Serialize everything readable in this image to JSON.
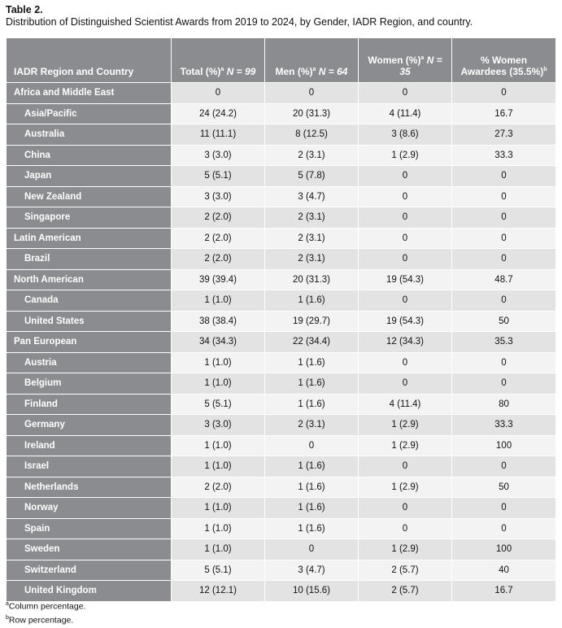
{
  "caption": {
    "title": "Table 2.",
    "subtitle": "Distribution of Distinguished Scientist Awards from 2019 to 2024, by Gender, IADR Region, and country."
  },
  "table": {
    "headers": {
      "region": "IADR Region and Country",
      "total_label": "Total (%)",
      "total_sup": "a",
      "total_n": "N = 99",
      "men_label": "Men (%)",
      "men_sup": "a",
      "men_n": "N = 64",
      "women_label": "Women (%)",
      "women_sup": "a",
      "women_n": "N = 35",
      "pct_line1": "% Women",
      "pct_line2": "Awardees (35.5%)",
      "pct_sup": "b"
    },
    "rows": [
      {
        "name": "Africa and Middle East",
        "sub": false,
        "total": "0",
        "men": "0",
        "women": "0",
        "pct": "0"
      },
      {
        "name": "Asia/Pacific",
        "sub": true,
        "total": "24 (24.2)",
        "men": "20 (31.3)",
        "women": "4 (11.4)",
        "pct": "16.7"
      },
      {
        "name": "Australia",
        "sub": true,
        "total": "11 (11.1)",
        "men": "8 (12.5)",
        "women": "3 (8.6)",
        "pct": "27.3"
      },
      {
        "name": "China",
        "sub": true,
        "total": "3 (3.0)",
        "men": "2 (3.1)",
        "women": "1 (2.9)",
        "pct": "33.3"
      },
      {
        "name": "Japan",
        "sub": true,
        "total": "5 (5.1)",
        "men": "5 (7.8)",
        "women": "0",
        "pct": "0"
      },
      {
        "name": "New Zealand",
        "sub": true,
        "total": "3 (3.0)",
        "men": "3 (4.7)",
        "women": "0",
        "pct": "0"
      },
      {
        "name": "Singapore",
        "sub": true,
        "total": "2 (2.0)",
        "men": "2 (3.1)",
        "women": "0",
        "pct": "0"
      },
      {
        "name": "Latin American",
        "sub": false,
        "total": "2 (2.0)",
        "men": "2 (3.1)",
        "women": "0",
        "pct": "0"
      },
      {
        "name": "Brazil",
        "sub": true,
        "total": "2 (2.0)",
        "men": "2 (3.1)",
        "women": "0",
        "pct": "0"
      },
      {
        "name": "North American",
        "sub": false,
        "total": "39 (39.4)",
        "men": "20 (31.3)",
        "women": "19 (54.3)",
        "pct": "48.7"
      },
      {
        "name": "Canada",
        "sub": true,
        "total": "1 (1.0)",
        "men": "1 (1.6)",
        "women": "0",
        "pct": "0"
      },
      {
        "name": "United States",
        "sub": true,
        "total": "38 (38.4)",
        "men": "19 (29.7)",
        "women": "19 (54.3)",
        "pct": "50"
      },
      {
        "name": "Pan European",
        "sub": false,
        "total": "34 (34.3)",
        "men": "22 (34.4)",
        "women": "12 (34.3)",
        "pct": "35.3"
      },
      {
        "name": "Austria",
        "sub": true,
        "total": "1 (1.0)",
        "men": "1 (1.6)",
        "women": "0",
        "pct": "0"
      },
      {
        "name": "Belgium",
        "sub": true,
        "total": "1 (1.0)",
        "men": "1 (1.6)",
        "women": "0",
        "pct": "0"
      },
      {
        "name": "Finland",
        "sub": true,
        "total": "5 (5.1)",
        "men": "1 (1.6)",
        "women": "4 (11.4)",
        "pct": "80"
      },
      {
        "name": "Germany",
        "sub": true,
        "total": "3 (3.0)",
        "men": "2 (3.1)",
        "women": "1 (2.9)",
        "pct": "33.3"
      },
      {
        "name": "Ireland",
        "sub": true,
        "total": "1 (1.0)",
        "men": "0",
        "women": "1 (2.9)",
        "pct": "100"
      },
      {
        "name": "Israel",
        "sub": true,
        "total": "1 (1.0)",
        "men": "1 (1.6)",
        "women": "0",
        "pct": "0"
      },
      {
        "name": "Netherlands",
        "sub": true,
        "total": "2 (2.0)",
        "men": "1 (1.6)",
        "women": "1 (2.9)",
        "pct": "50"
      },
      {
        "name": "Norway",
        "sub": true,
        "total": "1 (1.0)",
        "men": "1 (1.6)",
        "women": "0",
        "pct": "0"
      },
      {
        "name": "Spain",
        "sub": true,
        "total": "1 (1.0)",
        "men": "1 (1.6)",
        "women": "0",
        "pct": "0"
      },
      {
        "name": "Sweden",
        "sub": true,
        "total": "1 (1.0)",
        "men": "0",
        "women": "1 (2.9)",
        "pct": "100"
      },
      {
        "name": "Switzerland",
        "sub": true,
        "total": "5 (5.1)",
        "men": "3 (4.7)",
        "women": "2 (5.7)",
        "pct": "40"
      },
      {
        "name": "United Kingdom",
        "sub": true,
        "total": "12 (12.1)",
        "men": "10 (15.6)",
        "women": "2 (5.7)",
        "pct": "16.7"
      }
    ]
  },
  "footnotes": [
    {
      "sup": "a",
      "text": "Column percentage."
    },
    {
      "sup": "b",
      "text": "Row percentage."
    }
  ],
  "colors": {
    "header_bg": "#8b8c8f",
    "row_odd": "#e3e3e4",
    "row_even": "#f3f3f4"
  }
}
